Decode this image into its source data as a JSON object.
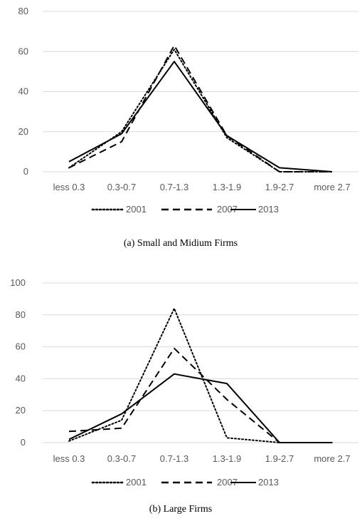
{
  "chart_data": [
    {
      "type": "line",
      "categories": [
        "less 0.3",
        "0.3-0.7",
        "0.7-1.3",
        "1.3-1.9",
        "1.9-2.7",
        "more 2.7"
      ],
      "yticks": [
        0,
        20,
        40,
        60,
        80
      ],
      "ylim": [
        0,
        80
      ],
      "grid": true,
      "legend_position": "bottom",
      "series": [
        {
          "name": "2001",
          "style": "dotted",
          "values": [
            2,
            20,
            61,
            17,
            0,
            0
          ]
        },
        {
          "name": "2007",
          "style": "dashed",
          "values": [
            2,
            15,
            63,
            18,
            0,
            0
          ]
        },
        {
          "name": "2013",
          "style": "solid",
          "values": [
            5,
            19,
            55,
            18,
            2,
            0
          ]
        }
      ],
      "caption": "(a)  Small  and  Midium  Firms"
    },
    {
      "type": "line",
      "categories": [
        "less 0.3",
        "0.3-0.7",
        "0.7-1.3",
        "1.3-1.9",
        "1.9-2.7",
        "more 2.7"
      ],
      "yticks": [
        0,
        20,
        40,
        60,
        80,
        100
      ],
      "ylim": [
        0,
        100
      ],
      "grid": true,
      "legend_position": "bottom",
      "series": [
        {
          "name": "2001",
          "style": "dotted",
          "values": [
            1,
            14,
            84,
            3,
            0,
            0
          ]
        },
        {
          "name": "2007",
          "style": "dashed",
          "values": [
            7,
            9,
            59,
            27,
            0,
            0
          ]
        },
        {
          "name": "2013",
          "style": "solid",
          "values": [
            2,
            18,
            43,
            37,
            0,
            0
          ]
        }
      ],
      "caption": "(b)  Large  Firms"
    }
  ]
}
